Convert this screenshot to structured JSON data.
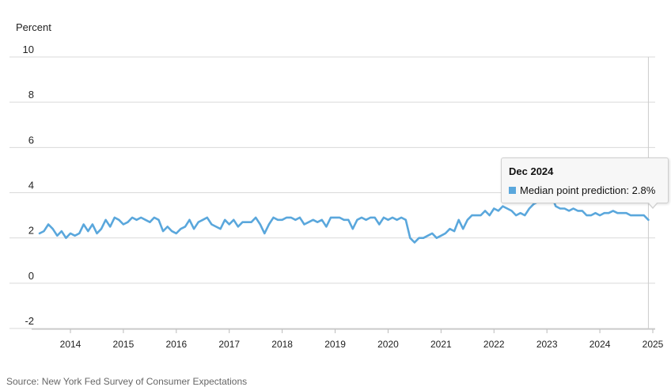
{
  "chart_data": {
    "type": "line",
    "title": "",
    "ylabel": "Percent",
    "xlabel": "",
    "ylim": [
      -2,
      10
    ],
    "yticks": [
      "10",
      "8",
      "6",
      "4",
      "2",
      "0",
      "-2"
    ],
    "xticks": [
      "2014",
      "2015",
      "2016",
      "2017",
      "2018",
      "2019",
      "2020",
      "2021",
      "2022",
      "2023",
      "2024",
      "2025"
    ],
    "grid": true,
    "line_color": "#5aa7dc",
    "series": [
      {
        "name": "Median point prediction",
        "points": [
          [
            "2013-06",
            2.2
          ],
          [
            "2013-07",
            2.3
          ],
          [
            "2013-08",
            2.6
          ],
          [
            "2013-09",
            2.4
          ],
          [
            "2013-10",
            2.1
          ],
          [
            "2013-11",
            2.3
          ],
          [
            "2013-12",
            2.0
          ],
          [
            "2014-01",
            2.2
          ],
          [
            "2014-02",
            2.1
          ],
          [
            "2014-03",
            2.2
          ],
          [
            "2014-04",
            2.6
          ],
          [
            "2014-05",
            2.3
          ],
          [
            "2014-06",
            2.6
          ],
          [
            "2014-07",
            2.2
          ],
          [
            "2014-08",
            2.4
          ],
          [
            "2014-09",
            2.8
          ],
          [
            "2014-10",
            2.5
          ],
          [
            "2014-11",
            2.9
          ],
          [
            "2014-12",
            2.8
          ],
          [
            "2015-01",
            2.6
          ],
          [
            "2015-02",
            2.7
          ],
          [
            "2015-03",
            2.9
          ],
          [
            "2015-04",
            2.8
          ],
          [
            "2015-05",
            2.9
          ],
          [
            "2015-06",
            2.8
          ],
          [
            "2015-07",
            2.7
          ],
          [
            "2015-08",
            2.9
          ],
          [
            "2015-09",
            2.8
          ],
          [
            "2015-10",
            2.3
          ],
          [
            "2015-11",
            2.5
          ],
          [
            "2015-12",
            2.3
          ],
          [
            "2016-01",
            2.2
          ],
          [
            "2016-02",
            2.4
          ],
          [
            "2016-03",
            2.5
          ],
          [
            "2016-04",
            2.8
          ],
          [
            "2016-05",
            2.4
          ],
          [
            "2016-06",
            2.7
          ],
          [
            "2016-07",
            2.8
          ],
          [
            "2016-08",
            2.9
          ],
          [
            "2016-09",
            2.6
          ],
          [
            "2016-10",
            2.5
          ],
          [
            "2016-11",
            2.4
          ],
          [
            "2016-12",
            2.8
          ],
          [
            "2017-01",
            2.6
          ],
          [
            "2017-02",
            2.8
          ],
          [
            "2017-03",
            2.5
          ],
          [
            "2017-04",
            2.7
          ],
          [
            "2017-05",
            2.7
          ],
          [
            "2017-06",
            2.7
          ],
          [
            "2017-07",
            2.9
          ],
          [
            "2017-08",
            2.6
          ],
          [
            "2017-09",
            2.2
          ],
          [
            "2017-10",
            2.6
          ],
          [
            "2017-11",
            2.9
          ],
          [
            "2017-12",
            2.8
          ],
          [
            "2018-01",
            2.8
          ],
          [
            "2018-02",
            2.9
          ],
          [
            "2018-03",
            2.9
          ],
          [
            "2018-04",
            2.8
          ],
          [
            "2018-05",
            2.9
          ],
          [
            "2018-06",
            2.6
          ],
          [
            "2018-07",
            2.7
          ],
          [
            "2018-08",
            2.8
          ],
          [
            "2018-09",
            2.7
          ],
          [
            "2018-10",
            2.8
          ],
          [
            "2018-11",
            2.5
          ],
          [
            "2018-12",
            2.9
          ],
          [
            "2019-01",
            2.9
          ],
          [
            "2019-02",
            2.9
          ],
          [
            "2019-03",
            2.8
          ],
          [
            "2019-04",
            2.8
          ],
          [
            "2019-05",
            2.4
          ],
          [
            "2019-06",
            2.8
          ],
          [
            "2019-07",
            2.9
          ],
          [
            "2019-08",
            2.8
          ],
          [
            "2019-09",
            2.9
          ],
          [
            "2019-10",
            2.9
          ],
          [
            "2019-11",
            2.6
          ],
          [
            "2019-12",
            2.9
          ],
          [
            "2020-01",
            2.8
          ],
          [
            "2020-02",
            2.9
          ],
          [
            "2020-03",
            2.8
          ],
          [
            "2020-04",
            2.9
          ],
          [
            "2020-05",
            2.8
          ],
          [
            "2020-06",
            2.0
          ],
          [
            "2020-07",
            1.8
          ],
          [
            "2020-08",
            2.0
          ],
          [
            "2020-09",
            2.0
          ],
          [
            "2020-10",
            2.1
          ],
          [
            "2020-11",
            2.2
          ],
          [
            "2020-12",
            2.0
          ],
          [
            "2021-01",
            2.1
          ],
          [
            "2021-02",
            2.2
          ],
          [
            "2021-03",
            2.4
          ],
          [
            "2021-04",
            2.3
          ],
          [
            "2021-05",
            2.8
          ],
          [
            "2021-06",
            2.4
          ],
          [
            "2021-07",
            2.8
          ],
          [
            "2021-08",
            3.0
          ],
          [
            "2021-09",
            3.0
          ],
          [
            "2021-10",
            3.0
          ],
          [
            "2021-11",
            3.2
          ],
          [
            "2021-12",
            3.0
          ],
          [
            "2022-01",
            3.3
          ],
          [
            "2022-02",
            3.2
          ],
          [
            "2022-03",
            3.4
          ],
          [
            "2022-04",
            3.3
          ],
          [
            "2022-05",
            3.2
          ],
          [
            "2022-06",
            3.0
          ],
          [
            "2022-07",
            3.1
          ],
          [
            "2022-08",
            3.0
          ],
          [
            "2022-09",
            3.3
          ],
          [
            "2022-10",
            3.5
          ],
          [
            "2022-11",
            3.6
          ],
          [
            "2022-12",
            4.2
          ],
          [
            "2023-01",
            4.5
          ],
          [
            "2023-02",
            3.9
          ],
          [
            "2023-03",
            3.4
          ],
          [
            "2023-04",
            3.3
          ],
          [
            "2023-05",
            3.3
          ],
          [
            "2023-06",
            3.2
          ],
          [
            "2023-07",
            3.3
          ],
          [
            "2023-08",
            3.2
          ],
          [
            "2023-09",
            3.2
          ],
          [
            "2023-10",
            3.0
          ],
          [
            "2023-11",
            3.0
          ],
          [
            "2023-12",
            3.1
          ],
          [
            "2024-01",
            3.0
          ],
          [
            "2024-02",
            3.1
          ],
          [
            "2024-03",
            3.1
          ],
          [
            "2024-04",
            3.2
          ],
          [
            "2024-05",
            3.1
          ],
          [
            "2024-06",
            3.1
          ],
          [
            "2024-07",
            3.1
          ],
          [
            "2024-08",
            3.0
          ],
          [
            "2024-09",
            3.0
          ],
          [
            "2024-10",
            3.0
          ],
          [
            "2024-11",
            3.0
          ],
          [
            "2024-12",
            2.8
          ]
        ]
      }
    ]
  },
  "tooltip": {
    "title": "Dec 2024",
    "row_label": "Median point prediction: 2.8%",
    "swatch_color": "#5aa7dc"
  },
  "source": "Source: New York Fed Survey of Consumer Expectations"
}
